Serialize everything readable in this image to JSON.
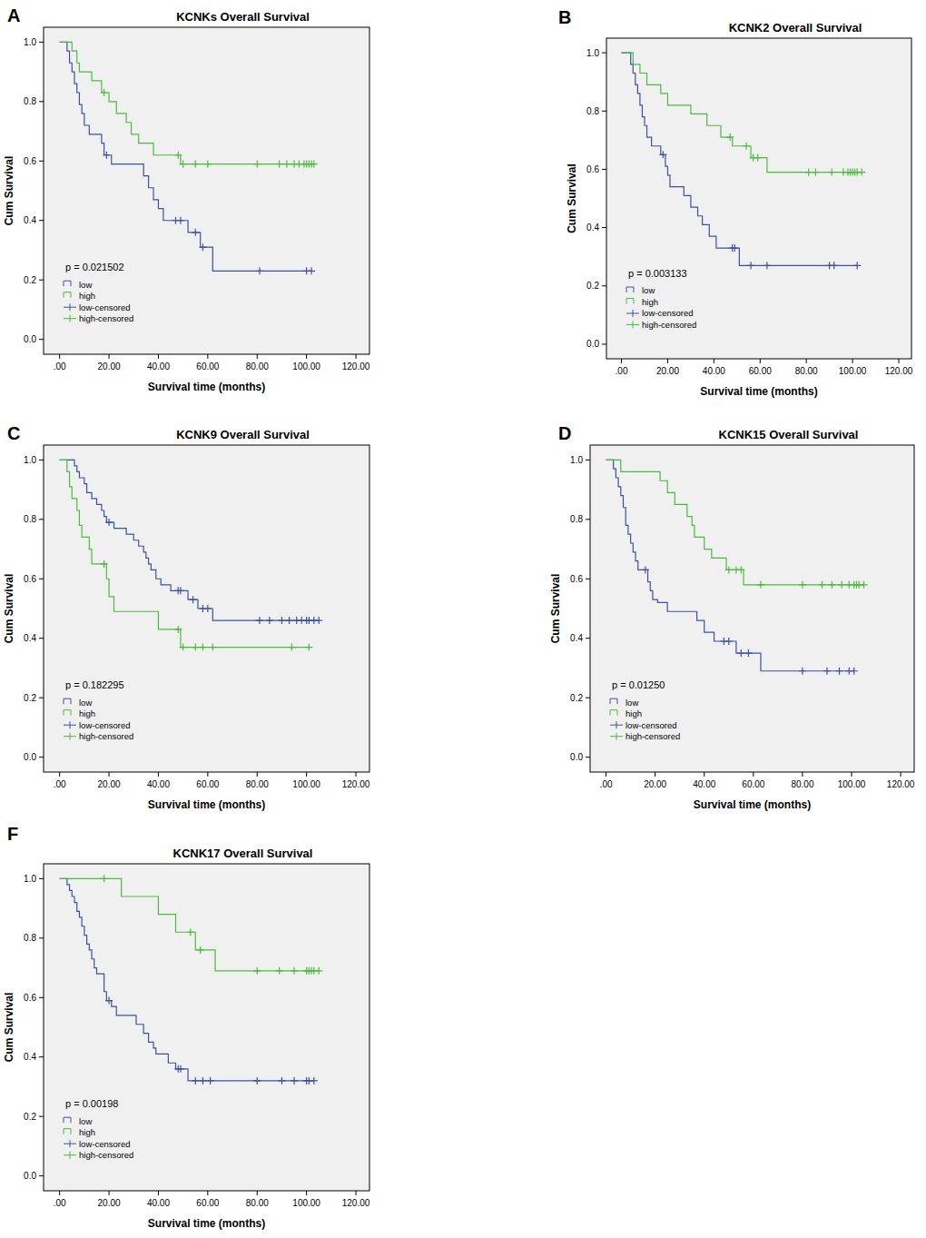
{
  "chart_data": [
    {
      "type": "step",
      "panel": "A",
      "title": "KCNKs Overall Survival",
      "annotation": "p = 0.021502",
      "x_label": "Survival time (months)",
      "y_label": "Cum Survival",
      "xlim": [
        -6.5,
        125.5
      ],
      "ylim": [
        -0.05,
        1.05
      ],
      "xticks": [
        {
          "value": 0,
          "label": ".00"
        },
        {
          "value": 20,
          "label": "20.00"
        },
        {
          "value": 40,
          "label": "40.00"
        },
        {
          "value": 60,
          "label": "60.00"
        },
        {
          "value": 80,
          "label": "80.00"
        },
        {
          "value": 100,
          "label": "100.00"
        },
        {
          "value": 120,
          "label": "120.00"
        }
      ],
      "yticks": [
        {
          "value": 0,
          "label": "0.0"
        },
        0.2,
        0.4,
        0.6,
        0.8,
        {
          "value": 1,
          "label": "1.0"
        }
      ],
      "legend": "lower left",
      "series": [
        {
          "name": "low",
          "type": "step",
          "line_style": "step",
          "color": "#3b52a3",
          "x": [
            0,
            3,
            4,
            5,
            6,
            7,
            8,
            9,
            10,
            12,
            17,
            18,
            21,
            34,
            36,
            38,
            40,
            42,
            52,
            57,
            62,
            102
          ],
          "values": [
            1,
            0.97,
            0.93,
            0.9,
            0.86,
            0.83,
            0.79,
            0.76,
            0.72,
            0.69,
            0.66,
            0.62,
            0.59,
            0.55,
            0.51,
            0.47,
            0.44,
            0.4,
            0.36,
            0.31,
            0.23,
            0.23
          ]
        },
        {
          "name": "high",
          "type": "step",
          "line_style": "step",
          "color": "#4cbb3d",
          "x": [
            0,
            5,
            7,
            8,
            13,
            17,
            20,
            23,
            27,
            29,
            32,
            38,
            49,
            103
          ],
          "values": [
            1,
            0.97,
            0.93,
            0.9,
            0.87,
            0.83,
            0.8,
            0.76,
            0.73,
            0.69,
            0.66,
            0.62,
            0.59,
            0.59
          ]
        },
        {
          "name": "low-censored",
          "type": "scatter",
          "marker": "plus",
          "color": "#3b52a3",
          "x": [
            19,
            47,
            49,
            55,
            58,
            81,
            100,
            102
          ],
          "values": [
            0.62,
            0.4,
            0.4,
            0.36,
            0.31,
            0.23,
            0.23,
            0.23
          ]
        },
        {
          "name": "high-censored",
          "type": "scatter",
          "marker": "plus",
          "color": "#4cbb3d",
          "x": [
            18,
            48,
            50,
            55,
            60,
            80,
            89,
            92,
            95,
            97,
            99,
            100,
            101,
            102,
            103
          ],
          "values": [
            0.83,
            0.62,
            0.59,
            0.59,
            0.59,
            0.59,
            0.59,
            0.59,
            0.59,
            0.59,
            0.59,
            0.59,
            0.59,
            0.59,
            0.59
          ]
        }
      ]
    },
    {
      "type": "step",
      "panel": "B",
      "title": "KCNK2 Overall Survival",
      "annotation": "p = 0.003133",
      "x_label": "Survival time (months)",
      "y_label": "Cum Survival",
      "xlim": [
        -6.5,
        125.5
      ],
      "ylim": [
        -0.05,
        1.05
      ],
      "xticks": [
        {
          "value": 0,
          "label": ".00"
        },
        {
          "value": 20,
          "label": "20.00"
        },
        {
          "value": 40,
          "label": "40.00"
        },
        {
          "value": 60,
          "label": "60.00"
        },
        {
          "value": 80,
          "label": "80.00"
        },
        {
          "value": 100,
          "label": "100.00"
        },
        {
          "value": 120,
          "label": "120.00"
        }
      ],
      "yticks": [
        {
          "value": 0,
          "label": "0.0"
        },
        0.2,
        0.4,
        0.6,
        0.8,
        {
          "value": 1,
          "label": "1.0"
        }
      ],
      "legend": "lower left",
      "series": [
        {
          "name": "low",
          "type": "step",
          "line_style": "step",
          "color": "#3b52a3",
          "x": [
            0,
            4,
            5,
            6,
            7,
            8,
            9,
            10,
            11,
            13,
            17,
            19,
            20,
            21,
            27,
            30,
            33,
            35,
            38,
            41,
            51,
            102
          ],
          "values": [
            1,
            0.96,
            0.93,
            0.89,
            0.86,
            0.82,
            0.78,
            0.75,
            0.71,
            0.68,
            0.65,
            0.61,
            0.58,
            0.54,
            0.51,
            0.47,
            0.44,
            0.41,
            0.37,
            0.33,
            0.27,
            0.27
          ]
        },
        {
          "name": "high",
          "type": "step",
          "line_style": "step",
          "color": "#4cbb3d",
          "x": [
            0,
            5,
            8,
            11,
            17,
            20,
            30,
            37,
            43,
            48,
            56,
            63,
            104
          ],
          "values": [
            1,
            0.96,
            0.93,
            0.89,
            0.86,
            0.82,
            0.79,
            0.75,
            0.71,
            0.68,
            0.64,
            0.59,
            0.59
          ]
        },
        {
          "name": "low-censored",
          "type": "scatter",
          "marker": "plus",
          "color": "#3b52a3",
          "x": [
            18,
            48,
            49,
            56,
            63,
            90,
            92,
            102
          ],
          "values": [
            0.65,
            0.33,
            0.33,
            0.27,
            0.27,
            0.27,
            0.27,
            0.27
          ]
        },
        {
          "name": "high-censored",
          "type": "scatter",
          "marker": "plus",
          "color": "#4cbb3d",
          "x": [
            47,
            54,
            57,
            59,
            81,
            84,
            91,
            96,
            98,
            99,
            100,
            101,
            102,
            104
          ],
          "values": [
            0.71,
            0.68,
            0.64,
            0.64,
            0.59,
            0.59,
            0.59,
            0.59,
            0.59,
            0.59,
            0.59,
            0.59,
            0.59,
            0.59
          ]
        }
      ]
    },
    {
      "type": "step",
      "panel": "C",
      "title": "KCNK9 Overall Survival",
      "annotation": "p = 0.182295",
      "x_label": "Survival time (months)",
      "y_label": "Cum Survival",
      "xlim": [
        -6.5,
        125.5
      ],
      "ylim": [
        -0.05,
        1.05
      ],
      "xticks": [
        {
          "value": 0,
          "label": ".00"
        },
        {
          "value": 20,
          "label": "20.00"
        },
        {
          "value": 40,
          "label": "40.00"
        },
        {
          "value": 60,
          "label": "60.00"
        },
        {
          "value": 80,
          "label": "80.00"
        },
        {
          "value": 100,
          "label": "100.00"
        },
        {
          "value": 120,
          "label": "120.00"
        }
      ],
      "yticks": [
        {
          "value": 0,
          "label": "0.0"
        },
        0.2,
        0.4,
        0.6,
        0.8,
        {
          "value": 1,
          "label": "1.0"
        }
      ],
      "legend": "lower left",
      "series": [
        {
          "name": "low",
          "type": "step",
          "line_style": "step",
          "color": "#3b52a3",
          "x": [
            0,
            6,
            7,
            8,
            10,
            11,
            13,
            15,
            17,
            18,
            19,
            22,
            27,
            30,
            32,
            34,
            35,
            36,
            37,
            39,
            41,
            45,
            52,
            56,
            62,
            105
          ],
          "values": [
            1,
            0.98,
            0.96,
            0.94,
            0.92,
            0.89,
            0.87,
            0.85,
            0.83,
            0.81,
            0.79,
            0.77,
            0.75,
            0.73,
            0.71,
            0.69,
            0.67,
            0.65,
            0.63,
            0.6,
            0.58,
            0.56,
            0.53,
            0.5,
            0.46,
            0.46
          ]
        },
        {
          "name": "high",
          "type": "step",
          "line_style": "step",
          "color": "#4cbb3d",
          "x": [
            0,
            3,
            4,
            5,
            7,
            8,
            9,
            12,
            13,
            19,
            20,
            22,
            40,
            49,
            101
          ],
          "values": [
            1,
            0.96,
            0.91,
            0.87,
            0.83,
            0.78,
            0.74,
            0.7,
            0.65,
            0.6,
            0.54,
            0.49,
            0.43,
            0.37,
            0.37
          ]
        },
        {
          "name": "low-censored",
          "type": "scatter",
          "marker": "plus",
          "color": "#3b52a3",
          "x": [
            20,
            48,
            49,
            54,
            58,
            60,
            81,
            85,
            90,
            93,
            96,
            98,
            100,
            101,
            103,
            105
          ],
          "values": [
            0.79,
            0.56,
            0.56,
            0.53,
            0.5,
            0.5,
            0.46,
            0.46,
            0.46,
            0.46,
            0.46,
            0.46,
            0.46,
            0.46,
            0.46,
            0.46
          ]
        },
        {
          "name": "high-censored",
          "type": "scatter",
          "marker": "plus",
          "color": "#4cbb3d",
          "x": [
            18,
            48,
            50,
            55,
            58,
            62,
            94,
            101
          ],
          "values": [
            0.65,
            0.43,
            0.37,
            0.37,
            0.37,
            0.37,
            0.37,
            0.37
          ]
        }
      ]
    },
    {
      "type": "step",
      "panel": "D",
      "title": "KCNK15 Overall Survival",
      "annotation": "p = 0.01250",
      "x_label": "Survival time (months)",
      "y_label": "Cum Survival",
      "xlim": [
        -6.5,
        125.5
      ],
      "ylim": [
        -0.05,
        1.05
      ],
      "xticks": [
        {
          "value": 0,
          "label": ".00"
        },
        {
          "value": 20,
          "label": "20.00"
        },
        {
          "value": 40,
          "label": "40.00"
        },
        {
          "value": 60,
          "label": "60.00"
        },
        {
          "value": 80,
          "label": "80.00"
        },
        {
          "value": 100,
          "label": "100.00"
        },
        {
          "value": 120,
          "label": "120.00"
        }
      ],
      "yticks": [
        {
          "value": 0,
          "label": "0.0"
        },
        0.2,
        0.4,
        0.6,
        0.8,
        {
          "value": 1,
          "label": "1.0"
        }
      ],
      "legend": "lower left",
      "series": [
        {
          "name": "low",
          "type": "step",
          "line_style": "step",
          "color": "#3b52a3",
          "x": [
            0,
            3,
            4,
            5,
            6,
            7,
            8,
            9,
            10,
            11,
            12,
            13,
            17,
            18,
            19,
            21,
            25,
            37,
            40,
            44,
            53,
            63,
            101
          ],
          "values": [
            1,
            0.97,
            0.94,
            0.91,
            0.88,
            0.84,
            0.78,
            0.75,
            0.72,
            0.69,
            0.66,
            0.63,
            0.59,
            0.56,
            0.53,
            0.52,
            0.49,
            0.46,
            0.42,
            0.39,
            0.35,
            0.29,
            0.29
          ]
        },
        {
          "name": "high",
          "type": "step",
          "line_style": "step",
          "color": "#4cbb3d",
          "x": [
            0,
            6,
            22,
            25,
            28,
            33,
            35,
            36,
            40,
            43,
            49,
            56,
            105
          ],
          "values": [
            1,
            0.96,
            0.93,
            0.89,
            0.85,
            0.81,
            0.78,
            0.74,
            0.7,
            0.67,
            0.63,
            0.58,
            0.58
          ]
        },
        {
          "name": "low-censored",
          "type": "scatter",
          "marker": "plus",
          "color": "#3b52a3",
          "x": [
            16,
            48,
            50,
            55,
            58,
            80,
            90,
            95,
            99,
            101
          ],
          "values": [
            0.63,
            0.39,
            0.39,
            0.35,
            0.35,
            0.29,
            0.29,
            0.29,
            0.29,
            0.29
          ]
        },
        {
          "name": "high-censored",
          "type": "scatter",
          "marker": "plus",
          "color": "#4cbb3d",
          "x": [
            50,
            53,
            55,
            63,
            80,
            88,
            92,
            96,
            99,
            101,
            102,
            103,
            105
          ],
          "values": [
            0.63,
            0.63,
            0.63,
            0.58,
            0.58,
            0.58,
            0.58,
            0.58,
            0.58,
            0.58,
            0.58,
            0.58,
            0.58
          ]
        }
      ]
    },
    {
      "type": "step",
      "panel": "F",
      "title": "KCNK17 Overall Survival",
      "annotation": "p = 0.00198",
      "x_label": "Survival time (months)",
      "y_label": "Cum Survival",
      "xlim": [
        -6.5,
        125.5
      ],
      "ylim": [
        -0.05,
        1.05
      ],
      "xticks": [
        {
          "value": 0,
          "label": ".00"
        },
        {
          "value": 20,
          "label": "20.00"
        },
        {
          "value": 40,
          "label": "40.00"
        },
        {
          "value": 60,
          "label": "60.00"
        },
        {
          "value": 80,
          "label": "80.00"
        },
        {
          "value": 100,
          "label": "100.00"
        },
        {
          "value": 120,
          "label": "120.00"
        }
      ],
      "yticks": [
        {
          "value": 0,
          "label": "0.0"
        },
        0.2,
        0.4,
        0.6,
        0.8,
        {
          "value": 1,
          "label": "1.0"
        }
      ],
      "legend": "lower left",
      "series": [
        {
          "name": "low",
          "type": "step",
          "line_style": "step",
          "color": "#3b52a3",
          "x": [
            0,
            3,
            4,
            5,
            6,
            7,
            8,
            9,
            10,
            11,
            12,
            13,
            14,
            15,
            18,
            19,
            21,
            23,
            31,
            34,
            36,
            38,
            39,
            44,
            47,
            52,
            103
          ],
          "values": [
            1,
            0.98,
            0.96,
            0.94,
            0.92,
            0.89,
            0.87,
            0.84,
            0.81,
            0.78,
            0.76,
            0.73,
            0.7,
            0.68,
            0.62,
            0.59,
            0.57,
            0.54,
            0.51,
            0.48,
            0.45,
            0.43,
            0.41,
            0.38,
            0.36,
            0.32,
            0.32
          ]
        },
        {
          "name": "high",
          "type": "step",
          "line_style": "step",
          "color": "#4cbb3d",
          "x": [
            0,
            25,
            40,
            47,
            55,
            63,
            105
          ],
          "values": [
            1,
            0.94,
            0.88,
            0.82,
            0.76,
            0.69,
            0.69
          ]
        },
        {
          "name": "low-censored",
          "type": "scatter",
          "marker": "plus",
          "color": "#3b52a3",
          "x": [
            20,
            48,
            49,
            55,
            58,
            61,
            80,
            90,
            95,
            100,
            101,
            103
          ],
          "values": [
            0.59,
            0.36,
            0.36,
            0.32,
            0.32,
            0.32,
            0.32,
            0.32,
            0.32,
            0.32,
            0.32,
            0.32
          ]
        },
        {
          "name": "high-censored",
          "type": "scatter",
          "marker": "plus",
          "color": "#4cbb3d",
          "x": [
            18,
            53,
            57,
            80,
            89,
            95,
            100,
            101,
            102,
            103,
            105
          ],
          "values": [
            1,
            0.82,
            0.76,
            0.69,
            0.69,
            0.69,
            0.69,
            0.69,
            0.69,
            0.69,
            0.69
          ]
        }
      ]
    }
  ]
}
